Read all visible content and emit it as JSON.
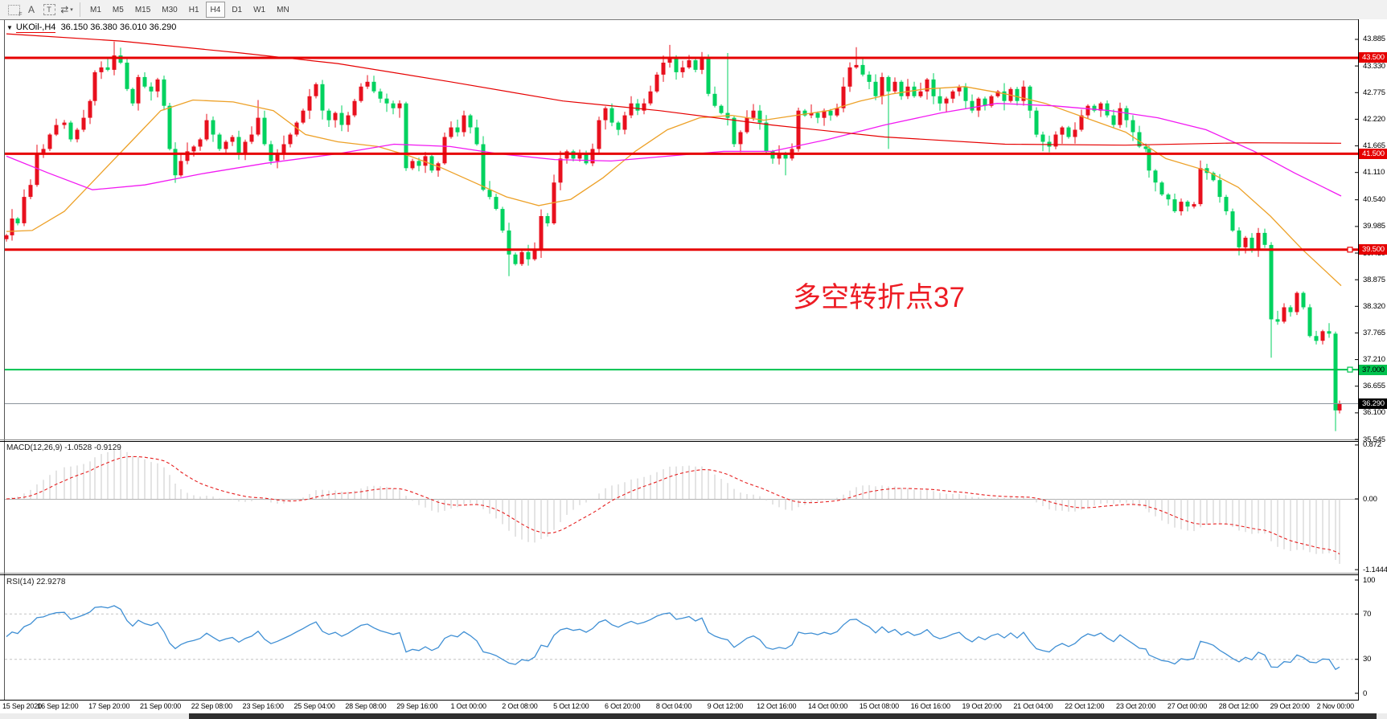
{
  "toolbar": {
    "tools": [
      {
        "name": "field-select-icon",
        "glyph": "F",
        "kind": "dotted"
      },
      {
        "name": "text-label-icon",
        "glyph": "A",
        "kind": "letter"
      },
      {
        "name": "text-box-icon",
        "glyph": "T",
        "kind": "dashT"
      },
      {
        "name": "drawing-tools-icon",
        "glyph": "⇄",
        "kind": "letter",
        "caret": true
      }
    ],
    "timeframes": [
      "M1",
      "M5",
      "M15",
      "M30",
      "H1",
      "H4",
      "D1",
      "W1",
      "MN"
    ],
    "active_timeframe": "H4"
  },
  "chart": {
    "symbol_label": "UKOil-,H4",
    "ohlc_text": "36.150 36.380 36.010 36.290"
  },
  "macd": {
    "name": "MACD(12,26,9)",
    "values": "-1.0528 -0.9129"
  },
  "rsi": {
    "name": "RSI(14)",
    "value": "22.9278"
  },
  "annotation": {
    "text": "多空转折点37",
    "color": "#ed1c24"
  },
  "chart_data": {
    "type": "candlestick",
    "symbol": "UKOil-",
    "timeframe": "H4",
    "current_bar": {
      "open": 36.15,
      "high": 36.38,
      "low": 36.01,
      "close": 36.29
    },
    "main_ylim": [
      35.545,
      44.27
    ],
    "price_ticks": [
      "43.885",
      "43.330",
      "42.775",
      "42.220",
      "41.665",
      "41.110",
      "40.540",
      "39.985",
      "39.430",
      "38.875",
      "38.320",
      "37.765",
      "37.210",
      "36.655",
      "36.100",
      "35.545"
    ],
    "price_lines": [
      {
        "price": 43.5,
        "label": "43.500",
        "color": "#e60000",
        "text": "#ffffff",
        "width": 3,
        "handle": false
      },
      {
        "price": 41.5,
        "label": "41.500",
        "color": "#e60000",
        "text": "#ffffff",
        "width": 3,
        "handle": false
      },
      {
        "price": 39.5,
        "label": "39.500",
        "color": "#e60000",
        "text": "#ffffff",
        "width": 3,
        "handle": true
      },
      {
        "price": 37.0,
        "label": "37.000",
        "color": "#00c24e",
        "text": "#000000",
        "width": 2,
        "handle": true
      }
    ],
    "current_price": {
      "price": 36.29,
      "label": "36.290",
      "line_color": "#8c949c",
      "badge_color": "#000000"
    },
    "macd_axis": [
      {
        "v": 0.872,
        "t": "0.872"
      },
      {
        "v": 0,
        "t": "0.00"
      },
      {
        "v": -1.1444,
        "t": "-1.1444"
      }
    ],
    "rsi_axis": [
      {
        "v": 100,
        "t": "100"
      },
      {
        "v": 70,
        "t": "70"
      },
      {
        "v": 30,
        "t": "30"
      },
      {
        "v": 0,
        "t": "0"
      }
    ],
    "rsi_levels": [
      70,
      30
    ],
    "time_labels": [
      "15 Sep 2020",
      "16 Sep 12:00",
      "17 Sep 20:00",
      "21 Sep 00:00",
      "22 Sep 08:00",
      "23 Sep 16:00",
      "25 Sep 04:00",
      "28 Sep 08:00",
      "29 Sep 16:00",
      "1 Oct 00:00",
      "2 Oct 08:00",
      "5 Oct 12:00",
      "6 Oct 20:00",
      "8 Oct 04:00",
      "9 Oct 12:00",
      "12 Oct 16:00",
      "14 Oct 00:00",
      "15 Oct 08:00",
      "16 Oct 16:00",
      "19 Oct 20:00",
      "21 Oct 04:00",
      "22 Oct 12:00",
      "23 Oct 20:00",
      "27 Oct 00:00",
      "28 Oct 12:00",
      "29 Oct 20:00",
      "2 Nov 00:00"
    ],
    "colors": {
      "up": "#e8101e",
      "down": "#00d25f",
      "hist": "#c9c9c9",
      "signal": "#e62020",
      "rsi_line": "#3f8fd4",
      "ma_orange": "#eda128",
      "ma_magenta": "#f219f2",
      "ma_red": "#e60000"
    },
    "close_path": [
      [
        8,
        39.8
      ],
      [
        15,
        40.15
      ],
      [
        22,
        40.05
      ],
      [
        30,
        40.6
      ],
      [
        38,
        40.85
      ],
      [
        46,
        41.5
      ],
      [
        54,
        41.6
      ],
      [
        62,
        41.9
      ],
      [
        70,
        42.1
      ],
      [
        80,
        42.15
      ],
      [
        88,
        41.8
      ],
      [
        96,
        42.0
      ],
      [
        104,
        42.25
      ],
      [
        112,
        42.6
      ],
      [
        118,
        43.2
      ],
      [
        126,
        43.3
      ],
      [
        134,
        43.25
      ],
      [
        142,
        43.55
      ],
      [
        150,
        43.4
      ],
      [
        158,
        42.85
      ],
      [
        165,
        42.55
      ],
      [
        172,
        43.1
      ],
      [
        180,
        42.9
      ],
      [
        188,
        42.8
      ],
      [
        196,
        43.05
      ],
      [
        204,
        42.5
      ],
      [
        211,
        41.6
      ],
      [
        218,
        41.05
      ],
      [
        225,
        41.35
      ],
      [
        233,
        41.55
      ],
      [
        241,
        41.65
      ],
      [
        249,
        41.8
      ],
      [
        257,
        42.2
      ],
      [
        265,
        41.9
      ],
      [
        273,
        41.6
      ],
      [
        281,
        41.75
      ],
      [
        289,
        41.85
      ],
      [
        297,
        41.5
      ],
      [
        305,
        41.75
      ],
      [
        313,
        41.9
      ],
      [
        321,
        42.25
      ],
      [
        329,
        41.7
      ],
      [
        337,
        41.35
      ],
      [
        345,
        41.5
      ],
      [
        353,
        41.7
      ],
      [
        361,
        41.9
      ],
      [
        369,
        42.15
      ],
      [
        377,
        42.4
      ],
      [
        385,
        42.7
      ],
      [
        393,
        42.95
      ],
      [
        401,
        42.4
      ],
      [
        409,
        42.2
      ],
      [
        417,
        42.35
      ],
      [
        425,
        42.1
      ],
      [
        433,
        42.3
      ],
      [
        441,
        42.6
      ],
      [
        449,
        42.9
      ],
      [
        457,
        43.0
      ],
      [
        465,
        42.8
      ],
      [
        473,
        42.65
      ],
      [
        481,
        42.55
      ],
      [
        489,
        42.45
      ],
      [
        497,
        42.55
      ],
      [
        505,
        41.2
      ],
      [
        513,
        41.35
      ],
      [
        521,
        41.25
      ],
      [
        529,
        41.45
      ],
      [
        537,
        41.15
      ],
      [
        545,
        41.3
      ],
      [
        553,
        41.85
      ],
      [
        561,
        42.05
      ],
      [
        569,
        41.95
      ],
      [
        577,
        42.3
      ],
      [
        585,
        42.05
      ],
      [
        593,
        41.7
      ],
      [
        601,
        40.75
      ],
      [
        609,
        40.6
      ],
      [
        617,
        40.35
      ],
      [
        625,
        39.9
      ],
      [
        633,
        39.4
      ],
      [
        641,
        39.2
      ],
      [
        649,
        39.45
      ],
      [
        657,
        39.3
      ],
      [
        665,
        39.5
      ],
      [
        673,
        40.2
      ],
      [
        681,
        40.05
      ],
      [
        689,
        40.9
      ],
      [
        697,
        41.4
      ],
      [
        705,
        41.55
      ],
      [
        713,
        41.4
      ],
      [
        721,
        41.5
      ],
      [
        729,
        41.3
      ],
      [
        737,
        41.6
      ],
      [
        745,
        42.2
      ],
      [
        753,
        42.45
      ],
      [
        761,
        42.15
      ],
      [
        769,
        42.0
      ],
      [
        777,
        42.3
      ],
      [
        785,
        42.55
      ],
      [
        793,
        42.4
      ],
      [
        801,
        42.55
      ],
      [
        809,
        42.8
      ],
      [
        817,
        43.15
      ],
      [
        825,
        43.4
      ],
      [
        833,
        43.5
      ],
      [
        841,
        43.2
      ],
      [
        849,
        43.3
      ],
      [
        857,
        43.45
      ],
      [
        865,
        43.25
      ],
      [
        873,
        43.5
      ],
      [
        881,
        42.75
      ],
      [
        889,
        42.5
      ],
      [
        897,
        42.35
      ],
      [
        905,
        42.25
      ],
      [
        913,
        41.7
      ],
      [
        921,
        41.95
      ],
      [
        929,
        42.25
      ],
      [
        937,
        42.4
      ],
      [
        945,
        42.15
      ],
      [
        953,
        41.55
      ],
      [
        961,
        41.4
      ],
      [
        969,
        41.5
      ],
      [
        977,
        41.4
      ],
      [
        985,
        41.6
      ],
      [
        993,
        42.4
      ],
      [
        1001,
        42.3
      ],
      [
        1009,
        42.35
      ],
      [
        1017,
        42.25
      ],
      [
        1025,
        42.4
      ],
      [
        1033,
        42.3
      ],
      [
        1041,
        42.45
      ],
      [
        1049,
        42.9
      ],
      [
        1057,
        43.3
      ],
      [
        1065,
        43.35
      ],
      [
        1073,
        43.15
      ],
      [
        1081,
        43.0
      ],
      [
        1089,
        42.7
      ],
      [
        1097,
        43.1
      ],
      [
        1105,
        42.8
      ],
      [
        1113,
        43.0
      ],
      [
        1121,
        42.7
      ],
      [
        1129,
        42.9
      ],
      [
        1137,
        42.7
      ],
      [
        1145,
        42.8
      ],
      [
        1153,
        43.05
      ],
      [
        1161,
        42.7
      ],
      [
        1169,
        42.55
      ],
      [
        1177,
        42.65
      ],
      [
        1185,
        42.8
      ],
      [
        1193,
        42.9
      ],
      [
        1201,
        42.6
      ],
      [
        1209,
        42.4
      ],
      [
        1217,
        42.65
      ],
      [
        1225,
        42.5
      ],
      [
        1233,
        42.7
      ],
      [
        1241,
        42.8
      ],
      [
        1249,
        42.6
      ],
      [
        1257,
        42.85
      ],
      [
        1265,
        42.6
      ],
      [
        1273,
        42.9
      ],
      [
        1281,
        42.4
      ],
      [
        1289,
        41.9
      ],
      [
        1297,
        41.75
      ],
      [
        1305,
        41.65
      ],
      [
        1313,
        41.9
      ],
      [
        1321,
        42.05
      ],
      [
        1329,
        41.85
      ],
      [
        1337,
        42.0
      ],
      [
        1345,
        42.3
      ],
      [
        1353,
        42.5
      ],
      [
        1361,
        42.4
      ],
      [
        1369,
        42.55
      ],
      [
        1377,
        42.3
      ],
      [
        1385,
        42.1
      ],
      [
        1393,
        42.45
      ],
      [
        1401,
        42.2
      ],
      [
        1409,
        41.95
      ],
      [
        1417,
        41.65
      ],
      [
        1425,
        41.6
      ],
      [
        1429,
        41.15
      ],
      [
        1437,
        40.9
      ],
      [
        1445,
        40.65
      ],
      [
        1453,
        40.55
      ],
      [
        1461,
        40.3
      ],
      [
        1469,
        40.5
      ],
      [
        1477,
        40.4
      ],
      [
        1485,
        40.45
      ],
      [
        1493,
        41.2
      ],
      [
        1501,
        41.1
      ],
      [
        1509,
        40.95
      ],
      [
        1517,
        40.6
      ],
      [
        1525,
        40.3
      ],
      [
        1533,
        39.9
      ],
      [
        1541,
        39.55
      ],
      [
        1549,
        39.75
      ],
      [
        1557,
        39.5
      ],
      [
        1565,
        39.85
      ],
      [
        1573,
        39.6
      ],
      [
        1581,
        38.05
      ],
      [
        1589,
        38.0
      ],
      [
        1597,
        38.3
      ],
      [
        1605,
        38.2
      ],
      [
        1613,
        38.6
      ],
      [
        1621,
        38.3
      ],
      [
        1629,
        37.7
      ],
      [
        1637,
        37.6
      ],
      [
        1645,
        37.8
      ],
      [
        1653,
        37.75
      ],
      [
        1661,
        36.15
      ],
      [
        1666,
        36.29
      ]
    ],
    "wick_specials": [
      [
        142,
        "hi",
        43.84
      ],
      [
        321,
        "hi",
        42.62
      ],
      [
        833,
        "hi",
        43.77
      ],
      [
        873,
        "hi",
        43.62
      ],
      [
        905,
        "hi",
        43.6
      ],
      [
        1062,
        "hi",
        43.72
      ],
      [
        633,
        "lo",
        38.95
      ],
      [
        977,
        "lo",
        41.05
      ],
      [
        1103,
        "lo",
        41.6
      ],
      [
        1581,
        "lo",
        37.25
      ],
      [
        1661,
        "lo",
        35.72
      ]
    ],
    "ma_red": [
      [
        8,
        44.0
      ],
      [
        150,
        43.85
      ],
      [
        300,
        43.6
      ],
      [
        420,
        43.38
      ],
      [
        560,
        43.0
      ],
      [
        700,
        42.6
      ],
      [
        820,
        42.4
      ],
      [
        960,
        42.1
      ],
      [
        1100,
        41.85
      ],
      [
        1250,
        41.7
      ],
      [
        1400,
        41.68
      ],
      [
        1550,
        41.73
      ],
      [
        1668,
        41.72
      ]
    ],
    "ma_orange": [
      [
        8,
        39.88
      ],
      [
        40,
        39.9
      ],
      [
        80,
        40.3
      ],
      [
        120,
        41.0
      ],
      [
        160,
        41.7
      ],
      [
        200,
        42.4
      ],
      [
        240,
        42.62
      ],
      [
        290,
        42.58
      ],
      [
        340,
        42.4
      ],
      [
        380,
        41.9
      ],
      [
        420,
        41.75
      ],
      [
        470,
        41.65
      ],
      [
        510,
        41.45
      ],
      [
        550,
        41.2
      ],
      [
        590,
        40.9
      ],
      [
        630,
        40.6
      ],
      [
        670,
        40.42
      ],
      [
        710,
        40.55
      ],
      [
        750,
        41.0
      ],
      [
        790,
        41.55
      ],
      [
        830,
        42.0
      ],
      [
        870,
        42.25
      ],
      [
        910,
        42.3
      ],
      [
        950,
        42.2
      ],
      [
        990,
        42.3
      ],
      [
        1030,
        42.4
      ],
      [
        1070,
        42.6
      ],
      [
        1110,
        42.75
      ],
      [
        1150,
        42.85
      ],
      [
        1200,
        42.9
      ],
      [
        1250,
        42.75
      ],
      [
        1300,
        42.55
      ],
      [
        1350,
        42.25
      ],
      [
        1400,
        41.95
      ],
      [
        1450,
        41.4
      ],
      [
        1500,
        41.15
      ],
      [
        1540,
        40.8
      ],
      [
        1580,
        40.2
      ],
      [
        1620,
        39.5
      ],
      [
        1668,
        38.75
      ]
    ],
    "ma_magenta": [
      [
        8,
        41.45
      ],
      [
        60,
        41.1
      ],
      [
        115,
        40.75
      ],
      [
        180,
        40.85
      ],
      [
        250,
        41.08
      ],
      [
        330,
        41.3
      ],
      [
        420,
        41.5
      ],
      [
        490,
        41.7
      ],
      [
        560,
        41.65
      ],
      [
        620,
        41.5
      ],
      [
        690,
        41.38
      ],
      [
        760,
        41.35
      ],
      [
        830,
        41.45
      ],
      [
        900,
        41.55
      ],
      [
        960,
        41.55
      ],
      [
        1030,
        41.8
      ],
      [
        1100,
        42.1
      ],
      [
        1170,
        42.35
      ],
      [
        1240,
        42.55
      ],
      [
        1310,
        42.5
      ],
      [
        1380,
        42.4
      ],
      [
        1440,
        42.25
      ],
      [
        1500,
        42.0
      ],
      [
        1560,
        41.55
      ],
      [
        1610,
        41.1
      ],
      [
        1668,
        40.62
      ]
    ]
  }
}
